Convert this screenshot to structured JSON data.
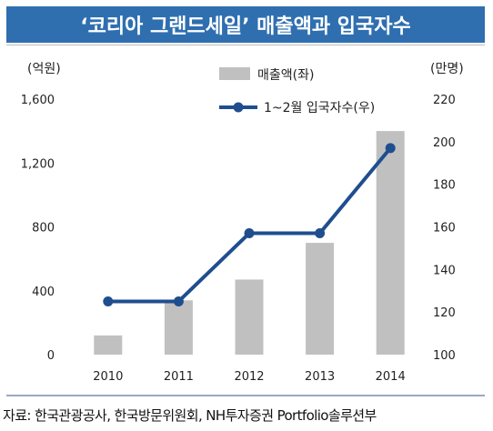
{
  "header": {
    "title": "‘코리아 그랜드세일’ 매출액과 입국자수"
  },
  "source": "자료: 한국관광공사, 한국방문위원회, NH투자증권 Portfolio솔루션부",
  "chart_data": {
    "type": "bar+line",
    "categories": [
      "2010",
      "2011",
      "2012",
      "2013",
      "2014"
    ],
    "series": [
      {
        "name": "매출액(좌)",
        "type": "bar",
        "axis": "left",
        "values": [
          120,
          340,
          470,
          700,
          1400
        ],
        "color": "#c0c0c0"
      },
      {
        "name": "1~2월 입국자수(우)",
        "type": "line",
        "axis": "right",
        "values": [
          125,
          125,
          157,
          157,
          197
        ],
        "color": "#1f4e8f"
      }
    ],
    "left_axis": {
      "label": "(억원)",
      "ylim": [
        0,
        1600
      ],
      "ticks": [
        0,
        400,
        800,
        1200,
        1600
      ],
      "tick_labels": [
        "0",
        "400",
        "800",
        "1,200",
        "1,600"
      ]
    },
    "right_axis": {
      "label": "(만명)",
      "ylim": [
        100,
        220
      ],
      "ticks": [
        100,
        120,
        140,
        160,
        180,
        200,
        220
      ],
      "tick_labels": [
        "100",
        "120",
        "140",
        "160",
        "180",
        "200",
        "220"
      ]
    },
    "legend_position": "top",
    "grid": false
  }
}
